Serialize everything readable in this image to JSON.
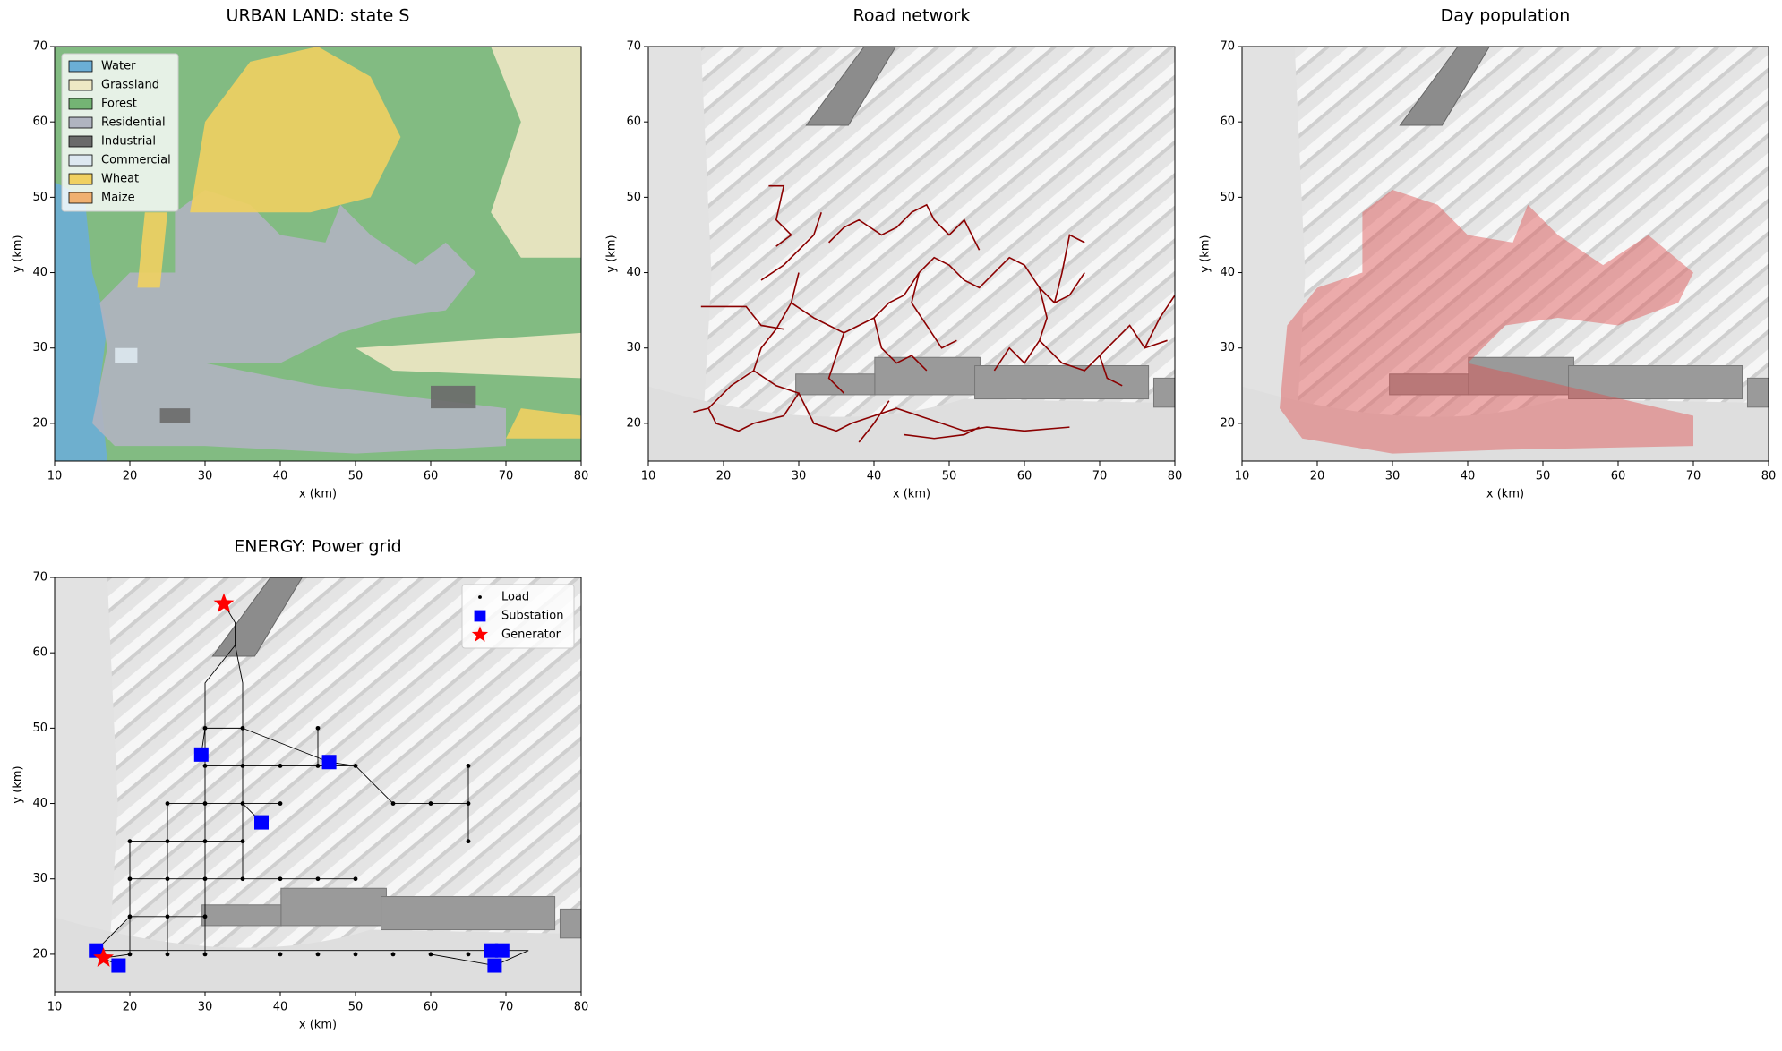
{
  "chart_data": [
    {
      "type": "landuse",
      "title": "URBAN LAND: state S",
      "xlabel": "x (km)",
      "ylabel": "y (km)",
      "xlim": [
        10,
        80
      ],
      "ylim": [
        15,
        70
      ],
      "xticks": [
        10,
        20,
        30,
        40,
        50,
        60,
        70,
        80
      ],
      "yticks": [
        20,
        30,
        40,
        50,
        60,
        70
      ],
      "legend": "upper left",
      "series": [
        {
          "name": "Water",
          "color": "#6baed6",
          "polygons": [
            {
              "x": [
                10,
                17,
                16,
                17,
                15,
                14,
                10
              ],
              "y": [
                15,
                15,
                25,
                33,
                40,
                50,
                52
              ]
            }
          ]
        },
        {
          "name": "Grassland",
          "color": "#eee8c4",
          "polygons": [
            {
              "x": [
                68,
                80,
                80,
                72,
                68,
                72
              ],
              "y": [
                70,
                70,
                42,
                42,
                48,
                60
              ]
            },
            {
              "x": [
                50,
                80,
                80,
                55
              ],
              "y": [
                30,
                32,
                26,
                27
              ]
            }
          ]
        },
        {
          "name": "Forest",
          "color": "#74b474",
          "polygons": [
            {
              "x": [
                10,
                80,
                80,
                10
              ],
              "y": [
                15,
                15,
                70,
                70
              ]
            }
          ]
        },
        {
          "name": "Residential",
          "color": "#b0b4c0",
          "polygons": [
            {
              "x": [
                15,
                17,
                16,
                20,
                26,
                26,
                30,
                36,
                40,
                46,
                48,
                52,
                58,
                62,
                66,
                62,
                55,
                48,
                40,
                30,
                45,
                70,
                70,
                50,
                30,
                18
              ],
              "y": [
                20,
                30,
                36,
                40,
                40,
                48,
                51,
                49,
                45,
                44,
                49,
                45,
                41,
                44,
                40,
                35,
                34,
                32,
                28,
                28,
                25,
                22,
                17,
                16,
                17,
                17
              ]
            }
          ]
        },
        {
          "name": "Industrial",
          "color": "#6a6a6a",
          "polygons": [
            {
              "x": [
                24,
                28,
                28,
                24
              ],
              "y": [
                22,
                22,
                20,
                20
              ]
            },
            {
              "x": [
                60,
                66,
                66,
                60
              ],
              "y": [
                25,
                25,
                22,
                22
              ]
            }
          ]
        },
        {
          "name": "Commercial",
          "color": "#dde8f0",
          "polygons": [
            {
              "x": [
                18,
                21,
                21,
                18
              ],
              "y": [
                30,
                30,
                28,
                28
              ]
            }
          ]
        },
        {
          "name": "Wheat",
          "color": "#f0d060",
          "polygons": [
            {
              "x": [
                28,
                30,
                36,
                45,
                52,
                56,
                52,
                44,
                36
              ],
              "y": [
                48,
                60,
                68,
                70,
                66,
                58,
                50,
                48,
                48
              ]
            },
            {
              "x": [
                21,
                22,
                25,
                24
              ],
              "y": [
                38,
                48,
                48,
                38
              ]
            },
            {
              "x": [
                70,
                80,
                80,
                72
              ],
              "y": [
                18,
                18,
                21,
                22
              ]
            }
          ]
        },
        {
          "name": "Maize",
          "color": "#f0b070",
          "polygons": []
        }
      ]
    },
    {
      "type": "network",
      "title": "Road network",
      "xlabel": "x (km)",
      "ylabel": "y (km)",
      "xlim": [
        10,
        80
      ],
      "ylim": [
        15,
        70
      ],
      "xticks": [
        10,
        20,
        30,
        40,
        50,
        60,
        70,
        80
      ],
      "yticks": [
        20,
        30,
        40,
        50,
        60,
        70
      ],
      "edges": {
        "color": "#8b0000",
        "x": [
          17,
          23,
          25,
          28,
          null,
          26,
          28,
          27,
          29,
          27,
          null,
          25,
          28,
          30,
          32,
          33,
          null,
          30,
          29,
          27,
          25,
          24,
          21,
          18,
          16,
          null,
          24,
          27,
          30,
          28,
          24,
          22,
          19,
          18,
          null,
          30,
          31,
          32,
          35,
          37,
          40,
          43,
          46,
          49,
          52,
          55,
          60,
          66,
          null,
          38,
          40,
          42,
          null,
          44,
          48,
          52,
          54,
          null,
          29,
          32,
          34,
          36,
          38,
          40,
          42,
          44,
          46,
          48,
          50,
          52,
          54,
          56,
          58,
          60,
          62,
          64,
          66,
          68,
          null,
          34,
          36,
          38,
          41,
          43,
          45,
          47,
          48,
          50,
          52,
          54,
          null,
          36,
          35,
          34,
          36,
          null,
          40,
          41,
          43,
          45,
          47,
          null,
          46,
          45,
          47,
          49,
          51,
          null,
          62,
          63,
          62,
          65,
          68,
          70,
          72,
          74,
          76,
          79,
          null,
          70,
          71,
          73,
          null,
          76,
          78,
          80,
          null,
          62,
          60,
          58,
          56,
          null,
          64,
          65,
          66,
          68
        ],
        "y": [
          35.5,
          35.5,
          33,
          32.5,
          null,
          51.5,
          51.5,
          47,
          45,
          43.5,
          null,
          39,
          41,
          43,
          45,
          48,
          null,
          40,
          36,
          32.5,
          30,
          27,
          25,
          22,
          21.5,
          null,
          27,
          25,
          24,
          21,
          20,
          19,
          20,
          22,
          null,
          24,
          22,
          20,
          19,
          20,
          21,
          22,
          21,
          20,
          19,
          19.5,
          19,
          19.5,
          null,
          17.5,
          20,
          23,
          null,
          18.5,
          18,
          18.5,
          19.5,
          null,
          36,
          34,
          33,
          32,
          33,
          34,
          36,
          37,
          40,
          42,
          41,
          39,
          38,
          40,
          42,
          41,
          38,
          36,
          37,
          40,
          null,
          44,
          46,
          47,
          45,
          46,
          48,
          49,
          47,
          45,
          47,
          43,
          null,
          32,
          29,
          26,
          24,
          null,
          34,
          30,
          28,
          29,
          27,
          null,
          40,
          36,
          33,
          30,
          31,
          null,
          38,
          34,
          31,
          28,
          27,
          29,
          31,
          33,
          30,
          31,
          null,
          29,
          26,
          25,
          null,
          30,
          34,
          37,
          null,
          31,
          28,
          30,
          27,
          null,
          36,
          40,
          45,
          44
        ]
      }
    },
    {
      "type": "density",
      "title": "Day population",
      "xlabel": "x (km)",
      "ylabel": "y (km)",
      "xlim": [
        10,
        80
      ],
      "ylim": [
        15,
        70
      ],
      "xticks": [
        10,
        20,
        30,
        40,
        50,
        60,
        70,
        80
      ],
      "yticks": [
        20,
        30,
        40,
        50,
        60,
        70
      ],
      "regions": {
        "color": "#e05050",
        "polygons": [
          {
            "x": [
              15,
              16,
              20,
              26,
              26,
              30,
              36,
              40,
              46,
              48,
              52,
              58,
              64,
              70,
              68,
              60,
              52,
              45,
              40,
              70,
              70,
              45,
              30,
              18
            ],
            "y": [
              22,
              33,
              38,
              40,
              48,
              51,
              49,
              45,
              44,
              49,
              45,
              41,
              45,
              40,
              36,
              33,
              34,
              33,
              28,
              21,
              17,
              16.5,
              16,
              18
            ]
          }
        ]
      }
    },
    {
      "type": "powergrid",
      "title": "ENERGY: Power grid",
      "xlabel": "x (km)",
      "ylabel": "y (km)",
      "xlim": [
        10,
        80
      ],
      "ylim": [
        15,
        70
      ],
      "xticks": [
        10,
        20,
        30,
        40,
        50,
        60,
        70,
        80
      ],
      "yticks": [
        20,
        30,
        40,
        50,
        60,
        70
      ],
      "legend": "upper right",
      "edges": {
        "color": "#000000",
        "x": [
          32.5,
          34,
          34,
          30,
          30,
          29.5,
          null,
          34,
          35,
          35,
          46.5,
          null,
          46.5,
          50,
          55,
          65,
          65,
          null,
          65,
          65,
          null,
          30,
          50,
          null,
          25,
          40,
          null,
          20,
          35,
          null,
          20,
          50,
          null,
          20,
          30,
          null,
          15.5,
          73,
          null,
          25,
          25,
          null,
          35,
          35,
          null,
          20,
          20,
          null,
          30,
          30,
          null,
          45,
          45,
          null,
          30,
          35,
          null,
          15.5,
          20,
          null,
          18.5,
          16.5,
          20,
          null,
          37.5,
          35,
          null,
          60,
          68.5,
          73
        ],
        "y": [
          66.5,
          64,
          61,
          56,
          50,
          46.5,
          null,
          61,
          56,
          50,
          45.5,
          null,
          45.5,
          45,
          40,
          40,
          45,
          null,
          40,
          35,
          null,
          45,
          45,
          null,
          40,
          40,
          null,
          35,
          35,
          null,
          30,
          30,
          null,
          25,
          25,
          null,
          20.5,
          20.5,
          null,
          40,
          20,
          null,
          50,
          30,
          null,
          35,
          20,
          null,
          50,
          20,
          null,
          50,
          45,
          null,
          50,
          50,
          null,
          20.5,
          25,
          null,
          18.5,
          19.5,
          20,
          null,
          37.5,
          40,
          null,
          20,
          18.5,
          20.5
        ]
      },
      "series": [
        {
          "name": "Load",
          "color": "#000000",
          "marker": "dot",
          "x": [
            30,
            35,
            45,
            30,
            35,
            40,
            45,
            50,
            25,
            30,
            35,
            40,
            55,
            60,
            65,
            65,
            20,
            25,
            30,
            35,
            65,
            20,
            25,
            30,
            35,
            40,
            45,
            50,
            20,
            25,
            30,
            20,
            25,
            30,
            40,
            45,
            50,
            55,
            60,
            65
          ],
          "y": [
            50,
            50,
            50,
            45,
            45,
            45,
            45,
            45,
            40,
            40,
            40,
            40,
            40,
            40,
            40,
            45,
            35,
            35,
            35,
            35,
            35,
            30,
            30,
            30,
            30,
            30,
            30,
            30,
            25,
            25,
            25,
            20,
            20,
            20,
            20,
            20,
            20,
            20,
            20,
            20
          ]
        },
        {
          "name": "Substation",
          "color": "#0000ff",
          "marker": "square",
          "x": [
            29.5,
            46.5,
            37.5,
            15.5,
            18.5,
            69.5,
            68.5,
            68
          ],
          "y": [
            46.5,
            45.5,
            37.5,
            20.5,
            18.5,
            20.5,
            18.5,
            20.5
          ]
        },
        {
          "name": "Generator",
          "color": "#ff0000",
          "marker": "star",
          "x": [
            32.5,
            16.5
          ],
          "y": [
            66.5,
            19.5
          ]
        }
      ]
    }
  ]
}
